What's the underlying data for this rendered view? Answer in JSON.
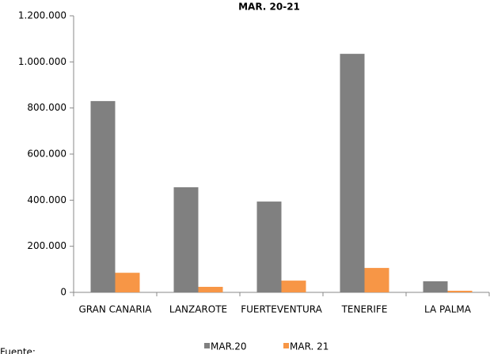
{
  "chart_data": {
    "type": "bar",
    "title": "MAR. 20-21",
    "categories": [
      "GRAN CANARIA",
      "LANZAROTE",
      "FUERTEVENTURA",
      "TENERIFE",
      "LA PALMA"
    ],
    "series": [
      {
        "name": "MAR.20",
        "color": "#808080",
        "values": [
          830000,
          456000,
          394000,
          1035000,
          48000
        ]
      },
      {
        "name": "MAR. 21",
        "color": "#f79646",
        "values": [
          85000,
          24000,
          51000,
          106000,
          7000
        ]
      }
    ],
    "ylim": [
      0,
      1200000
    ],
    "yticks": [
      0,
      {
        "value": 200000,
        "label": "200.000"
      },
      {
        "value": 400000,
        "label": "400.000"
      },
      {
        "value": 600000,
        "label": "600.000"
      },
      {
        "value": 800000,
        "label": "800.000"
      },
      {
        "value": 1000000,
        "label": "1.000.000"
      },
      {
        "value": 1200000,
        "label": "1.200.000"
      }
    ],
    "grid": false,
    "legend": "bottom",
    "source": "Fuente:"
  }
}
